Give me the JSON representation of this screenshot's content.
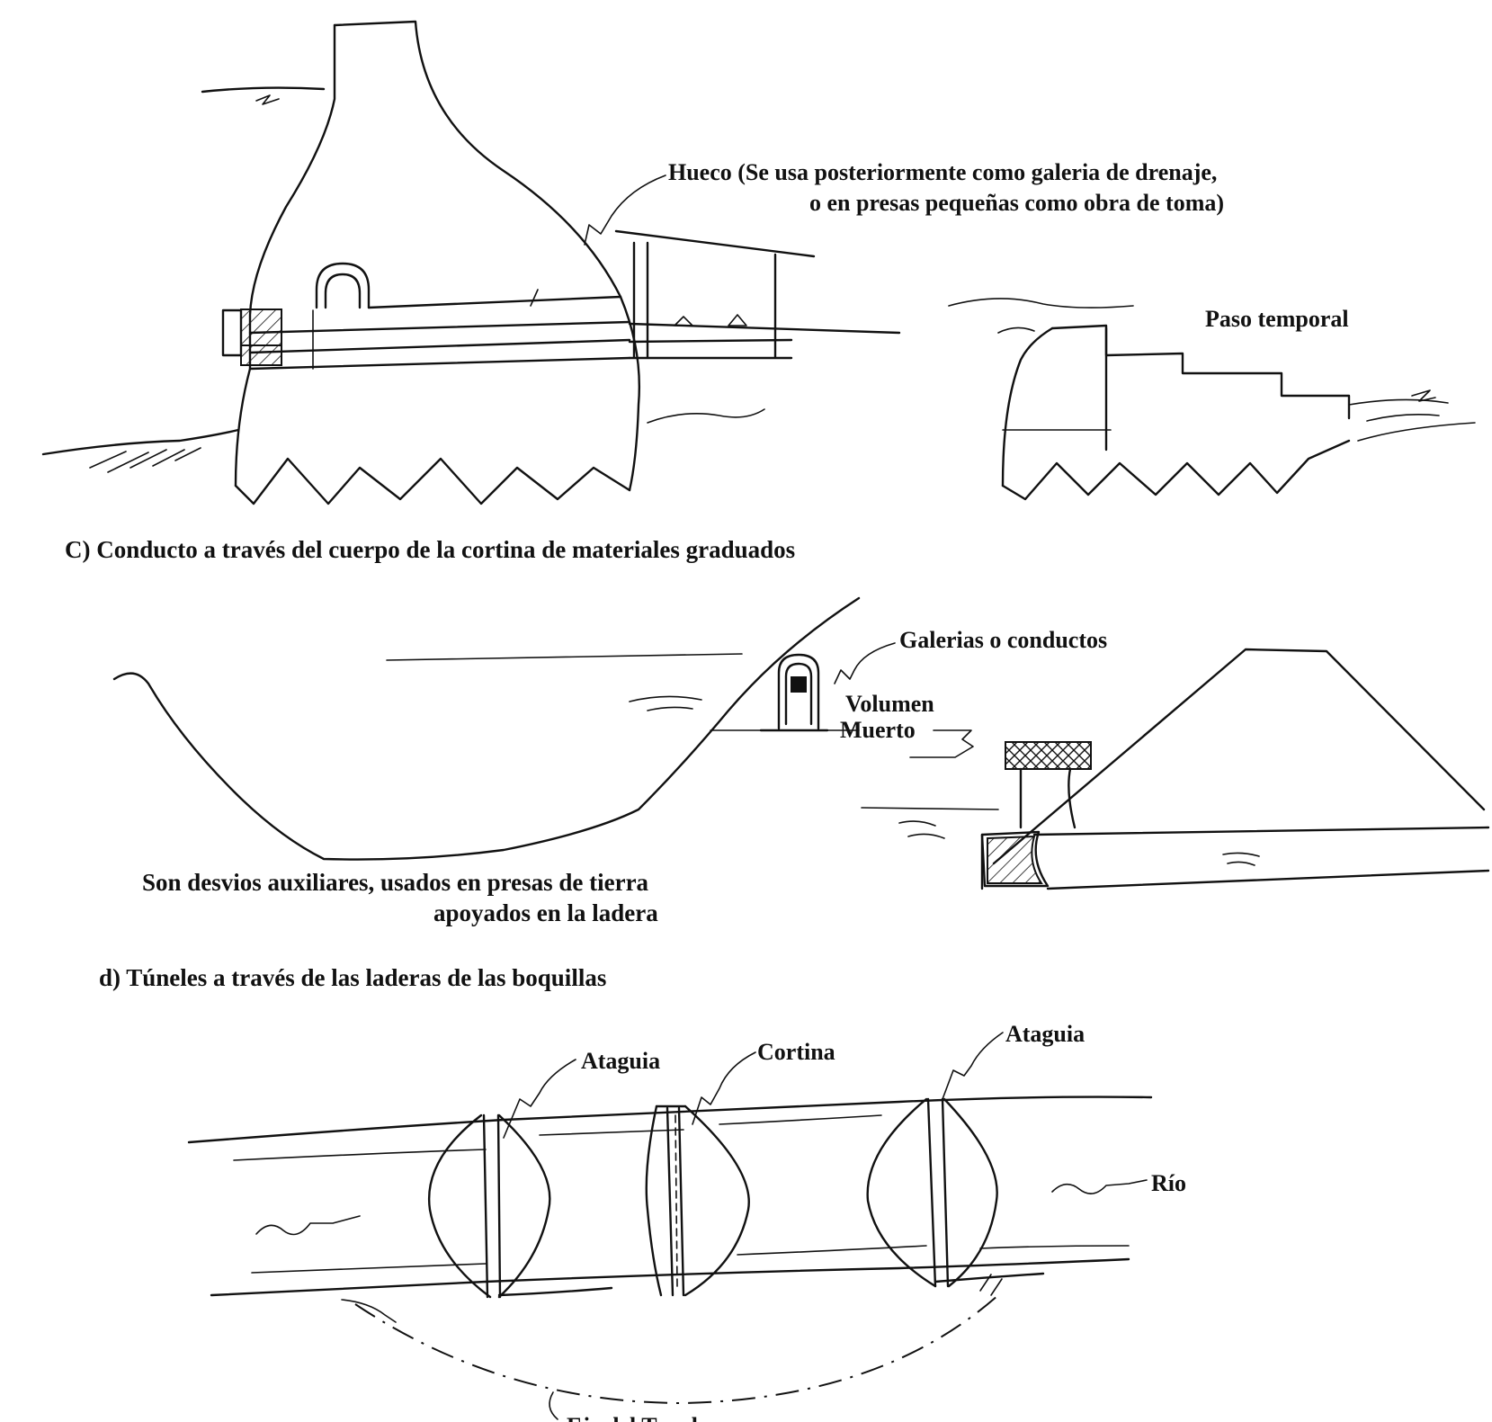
{
  "section_c": {
    "label_hueco_line1": "Hueco (Se usa posteriormente como galeria de drenaje,",
    "label_hueco_line2": "o en presas pequeñas como obra de toma)",
    "label_paso_temporal": "Paso temporal",
    "caption": "C) Conducto a través del cuerpo de la cortina de materiales graduados"
  },
  "section_d_aux": {
    "label_galerias": "Galerias o conductos",
    "label_volumen": "Volumen",
    "label_muerto": "Muerto",
    "note_line1": "Son desvios auxiliares, usados en presas de tierra",
    "note_line2": "apoyados en la ladera"
  },
  "section_d": {
    "caption": "d) Túneles a través de las laderas de las boquillas",
    "label_ataguia_left": "Ataguia",
    "label_cortina": "Cortina",
    "label_ataguia_right": "Ataguia",
    "label_rio": "Río",
    "label_eje": "Eje del Tunel"
  }
}
